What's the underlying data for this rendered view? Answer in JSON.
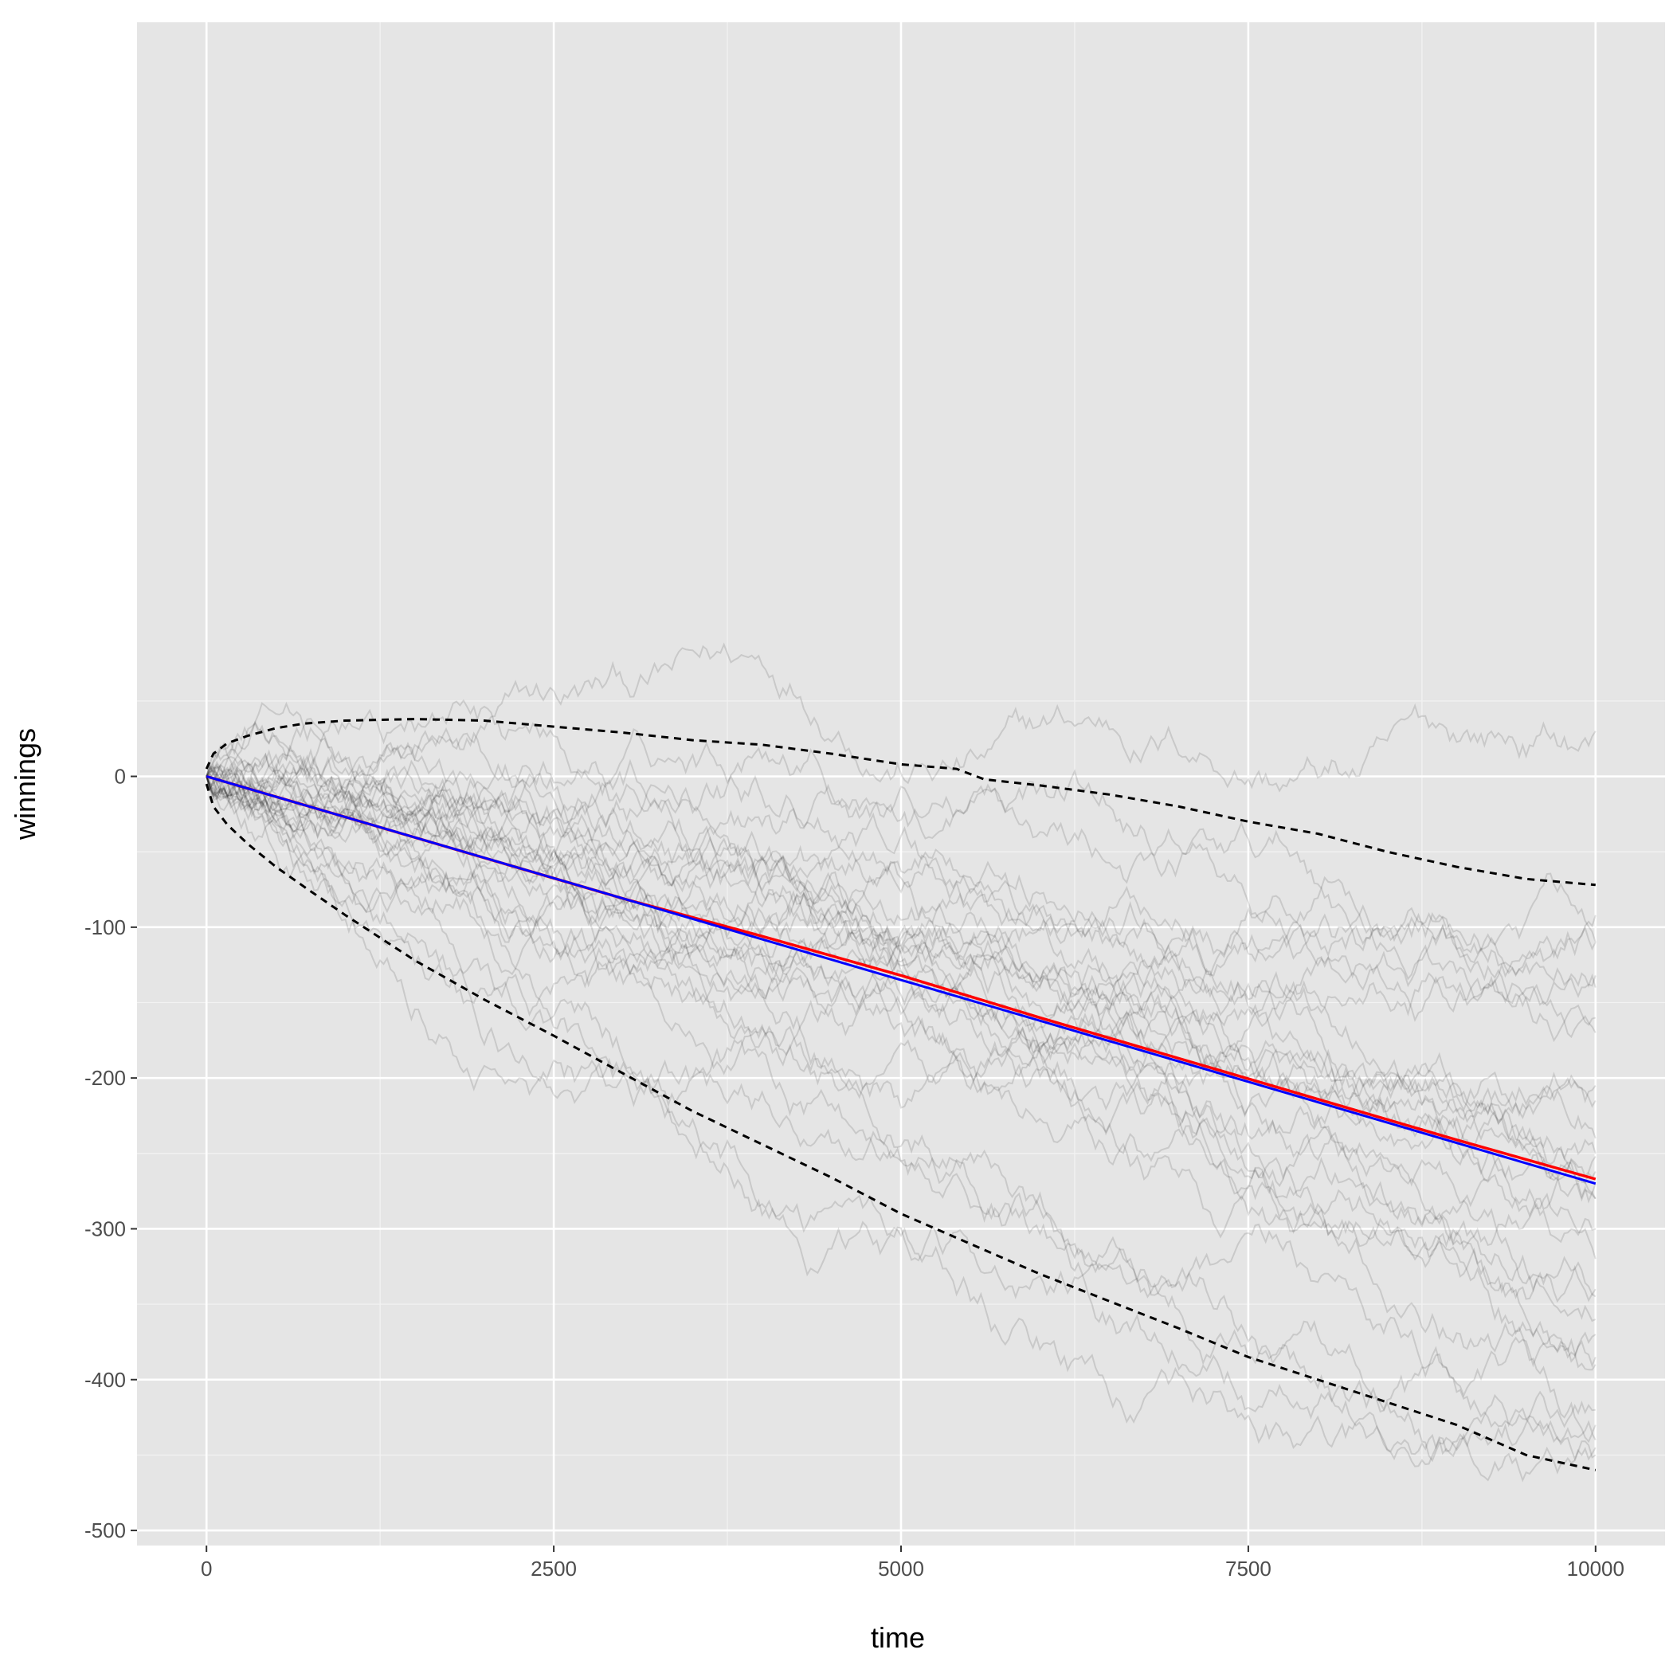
{
  "chart_data": {
    "type": "line",
    "xlabel": "time",
    "ylabel": "winnings",
    "xlim": [
      -500,
      10500
    ],
    "ylim": [
      -510,
      500
    ],
    "x_ticks": [
      0,
      2500,
      5000,
      7500,
      10000
    ],
    "x_tick_labels": [
      "0",
      "2500",
      "5000",
      "7500",
      "10000"
    ],
    "x_minor_ticks": [
      1250,
      3750,
      6250,
      8750
    ],
    "y_ticks": [
      -500,
      -400,
      -300,
      -200,
      -100,
      0
    ],
    "y_tick_labels": [
      "-500",
      "-400",
      "-300",
      "-200",
      "-100",
      "0"
    ],
    "y_minor_ticks": [
      -450,
      -350,
      -250,
      -150,
      -50,
      50
    ],
    "grid": true,
    "background": "#e5e5e5",
    "colors": {
      "simulations": "#000000",
      "sample_mean": "#ff0000",
      "expected_value": "#0000ff",
      "quantile_bands": "#000000"
    },
    "simulations": {
      "count": 30,
      "opacity": 0.12,
      "end_values": [
        30,
        -92,
        -110,
        -132,
        -160,
        -205,
        -215,
        -240,
        -252,
        -262,
        -270,
        -280,
        -300,
        -320,
        -340,
        -345,
        -360,
        -370,
        -385,
        -390,
        -420,
        -430,
        -440,
        -445,
        -450,
        -280,
        -250,
        -170,
        -140,
        -110
      ]
    },
    "series": [
      {
        "style": "solid",
        "x": [
          0,
          1000,
          2000,
          3000,
          4000,
          5000,
          6000,
          7000,
          8000,
          9000,
          10000
        ],
        "y": [
          0,
          -27,
          -54,
          -81,
          -106,
          -132,
          -160,
          -187,
          -214,
          -241,
          -267
        ]
      },
      {
        "style": "solid",
        "x": [
          0,
          10000
        ],
        "y": [
          0,
          -270
        ]
      },
      {
        "style": "dashed",
        "x": [
          0,
          50,
          150,
          300,
          500,
          700,
          1000,
          1500,
          2000,
          2500,
          3000,
          3500,
          4000,
          4500,
          5000,
          5400,
          5600,
          6000,
          6500,
          7000,
          7500,
          8000,
          8500,
          9000,
          9500,
          10000
        ],
        "y": [
          5,
          15,
          22,
          27,
          32,
          35,
          37,
          38,
          37,
          33,
          29,
          24,
          21,
          15,
          8,
          5,
          -2,
          -6,
          -12,
          -20,
          -30,
          -38,
          -50,
          -60,
          -68,
          -72
        ]
      },
      {
        "style": "dashed",
        "x": [
          0,
          50,
          150,
          300,
          500,
          700,
          1000,
          1500,
          2000,
          2500,
          3000,
          3500,
          4000,
          4500,
          5000,
          5500,
          6000,
          6500,
          7000,
          7500,
          8000,
          8500,
          9000,
          9500,
          10000
        ],
        "y": [
          -5,
          -20,
          -32,
          -45,
          -60,
          -73,
          -92,
          -122,
          -148,
          -172,
          -197,
          -222,
          -244,
          -266,
          -290,
          -310,
          -330,
          -348,
          -366,
          -385,
          -400,
          -415,
          -430,
          -450,
          -460
        ]
      }
    ]
  }
}
